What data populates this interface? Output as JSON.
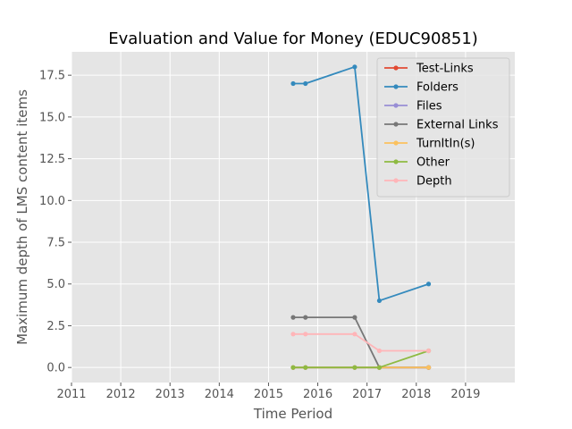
{
  "chart_data": {
    "type": "line",
    "title": "Evaluation and Value for Money (EDUC90851)",
    "xlabel": "Time Period",
    "ylabel": "Maximum depth of LMS content items",
    "xlim": [
      2011,
      2020
    ],
    "ylim": [
      -0.9,
      18.9
    ],
    "xticks": [
      2011,
      2012,
      2013,
      2014,
      2015,
      2016,
      2017,
      2018,
      2019
    ],
    "xtick_labels": [
      "2011",
      "2012",
      "2013",
      "2014",
      "2015",
      "2016",
      "2017",
      "2018",
      "2019"
    ],
    "yticks": [
      0,
      2.5,
      5,
      7.5,
      10,
      12.5,
      15,
      17.5
    ],
    "ytick_labels": [
      "0.0",
      "2.5",
      "5.0",
      "7.5",
      "10.0",
      "12.5",
      "15.0",
      "17.5"
    ],
    "grid": true,
    "legend_position": "top-right",
    "x": [
      2015.5,
      2015.75,
      2016.75,
      2017.25,
      2018.25
    ],
    "series": [
      {
        "name": "Test-Links",
        "color": "#E24A33",
        "values": [
          0,
          0,
          0,
          0,
          0
        ]
      },
      {
        "name": "Folders",
        "color": "#348ABD",
        "values": [
          17,
          17,
          18,
          4,
          5
        ]
      },
      {
        "name": "Files",
        "color": "#988ED5",
        "values": [
          0,
          0,
          0,
          0,
          0
        ]
      },
      {
        "name": "External Links",
        "color": "#777777",
        "values": [
          3,
          3,
          3,
          0,
          0
        ]
      },
      {
        "name": "TurnItIn(s)",
        "color": "#FBC15E",
        "values": [
          0,
          0,
          0,
          0,
          0
        ]
      },
      {
        "name": "Other",
        "color": "#8EBA42",
        "values": [
          0,
          0,
          0,
          0,
          1
        ]
      },
      {
        "name": "Depth",
        "color": "#FFB5B8",
        "values": [
          2,
          2,
          2,
          1,
          1
        ]
      }
    ]
  }
}
